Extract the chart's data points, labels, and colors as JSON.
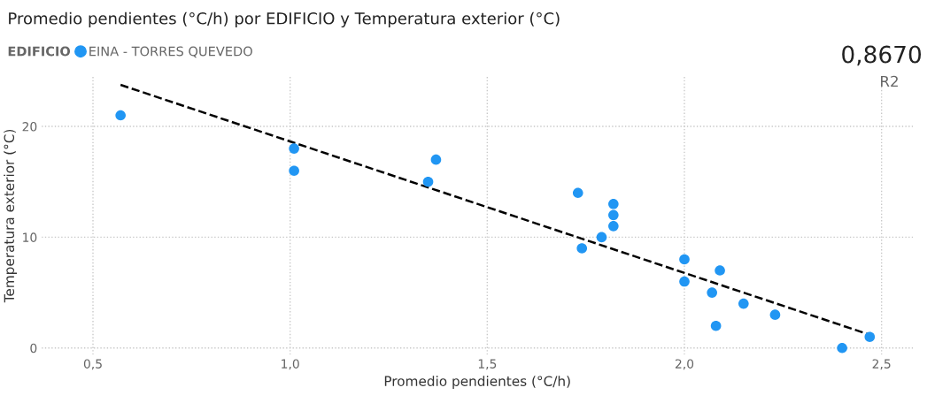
{
  "chart_data": {
    "type": "scatter",
    "title": "Promedio pendientes (°C/h) por EDIFICIO y Temperatura exterior (°C)",
    "xlabel": "Promedio pendientes (°C/h)",
    "ylabel": "Temperatura exterior (°C)",
    "legend_title": "EDIFICIO",
    "legend": "top left",
    "annotations": [
      "0,8670",
      "R2"
    ],
    "xlim": [
      0.37,
      2.58
    ],
    "xticks": [
      {
        "value": 0.5,
        "label": "0,5"
      },
      {
        "value": 1.0,
        "label": "1,0"
      },
      {
        "value": 1.5,
        "label": "1,5"
      },
      {
        "value": 2.0,
        "label": "2,0"
      },
      {
        "value": 2.5,
        "label": "2,5"
      }
    ],
    "ylim": [
      -0.6,
      24.5
    ],
    "yticks": [
      0,
      10,
      20
    ],
    "grid": true,
    "series": [
      {
        "name": "EINA - TORRES QUEVEDO",
        "color": "#2196f3",
        "marker": "circle",
        "x": [
          0.57,
          1.01,
          1.01,
          1.37,
          1.35,
          1.73,
          1.82,
          1.82,
          1.82,
          1.79,
          1.74,
          2.0,
          2.0,
          2.09,
          2.07,
          2.15,
          2.23,
          2.08,
          2.4,
          2.47
        ],
        "values": [
          21,
          18,
          16,
          17,
          15,
          14,
          13,
          12,
          11,
          10,
          9,
          8,
          6,
          7,
          5,
          4,
          3,
          2,
          0,
          1
        ]
      },
      {
        "type": "line",
        "color": "#000000",
        "line_style": "dashed",
        "x": [
          0.57,
          2.47
        ],
        "values": [
          23.75,
          1.2
        ]
      }
    ]
  }
}
